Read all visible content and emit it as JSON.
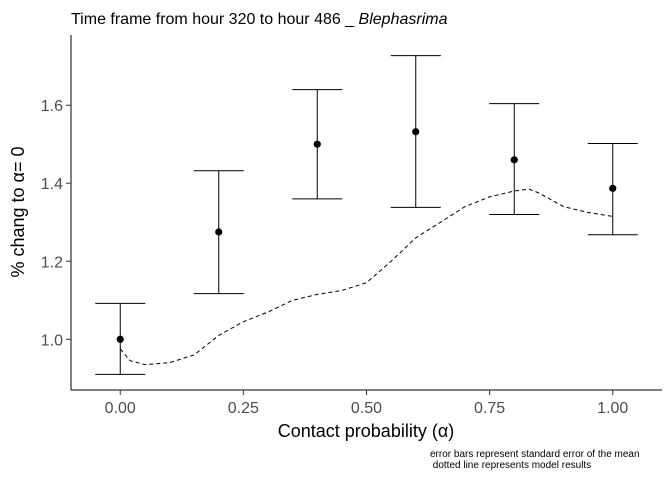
{
  "chart_data": {
    "type": "scatter",
    "title": "Time frame from hour 320  to hour  486 _ ",
    "title_italic": "Blephasrima",
    "xlabel": "Contact probability (α)",
    "ylabel": "% chang to α= 0",
    "xlim": [
      -0.1,
      1.1
    ],
    "ylim": [
      0.87,
      1.78
    ],
    "x_ticks": [
      0.0,
      0.25,
      0.5,
      0.75,
      1.0
    ],
    "x_tick_labels": [
      "0.00",
      "0.25",
      "0.50",
      "0.75",
      "1.00"
    ],
    "y_ticks": [
      1.0,
      1.2,
      1.4,
      1.6
    ],
    "y_tick_labels": [
      "1.0",
      "1.2",
      "1.4",
      "1.6"
    ],
    "grid": false,
    "series": [
      {
        "kind": "points_with_error_bars",
        "x": [
          0.0,
          0.2,
          0.4,
          0.6,
          0.8,
          1.0
        ],
        "y": [
          1.0,
          1.275,
          1.5,
          1.532,
          1.46,
          1.387
        ],
        "y_low": [
          0.91,
          1.117,
          1.36,
          1.338,
          1.32,
          1.268
        ],
        "y_high": [
          1.092,
          1.432,
          1.64,
          1.727,
          1.604,
          1.502
        ],
        "color": "#000000"
      },
      {
        "kind": "dashed_line",
        "x": [
          0.0,
          0.02,
          0.05,
          0.1,
          0.15,
          0.2,
          0.25,
          0.3,
          0.35,
          0.4,
          0.45,
          0.5,
          0.55,
          0.6,
          0.65,
          0.7,
          0.75,
          0.8,
          0.83,
          0.85,
          0.9,
          0.95,
          1.0
        ],
        "y": [
          0.975,
          0.945,
          0.935,
          0.94,
          0.96,
          1.01,
          1.045,
          1.07,
          1.1,
          1.115,
          1.125,
          1.145,
          1.2,
          1.26,
          1.3,
          1.34,
          1.365,
          1.38,
          1.385,
          1.375,
          1.34,
          1.325,
          1.315
        ],
        "color": "#000000"
      }
    ],
    "annotations": [
      "error bars represent standard error of the mean",
      " dotted line represents model results"
    ]
  }
}
